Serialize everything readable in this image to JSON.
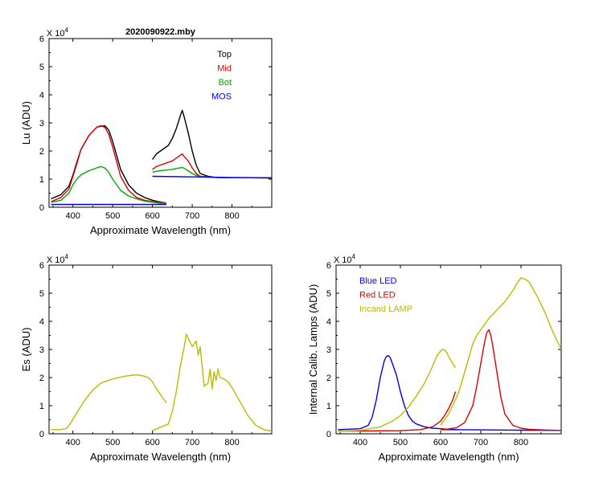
{
  "chart_data": [
    {
      "type": "line",
      "id": "lu",
      "title": "2020090922.mby",
      "xlabel": "Approximate Wavelength (nm)",
      "ylabel": "Lu (ADU)",
      "exponent_label": "X 10",
      "exponent_power": "4",
      "xlim": [
        340,
        900
      ],
      "ylim": [
        0,
        60000
      ],
      "xticks": [
        400,
        500,
        600,
        700,
        800
      ],
      "yticks": [
        0,
        10000,
        20000,
        30000,
        40000,
        50000,
        60000
      ],
      "ytick_labels": [
        "0",
        "1",
        "2",
        "3",
        "4",
        "5",
        "6"
      ],
      "legend_position": "top-right",
      "series": [
        {
          "name": "Top",
          "color": "#000000",
          "segments": [
            {
              "x": [
                345,
                370,
                390,
                400,
                410,
                420,
                440,
                460,
                470,
                480,
                490,
                500,
                520,
                540,
                560,
                580,
                600,
                615,
                635
              ],
              "y": [
                3000,
                4500,
                7500,
                11500,
                16000,
                20500,
                25500,
                28500,
                28800,
                29000,
                27500,
                23500,
                13500,
                8000,
                5000,
                3500,
                2500,
                2000,
                1500
              ]
            },
            {
              "x": [
                600,
                610,
                620,
                630,
                640,
                650,
                660,
                670,
                675,
                680,
                690,
                700,
                710,
                720,
                740,
                760,
                800,
                850,
                900
              ],
              "y": [
                17000,
                19000,
                20000,
                21000,
                22000,
                24500,
                28000,
                32500,
                34500,
                32000,
                26500,
                20000,
                15000,
                12000,
                11000,
                10600,
                10500,
                10500,
                10400
              ]
            }
          ]
        },
        {
          "name": "Mid",
          "color": "#dd0000",
          "segments": [
            {
              "x": [
                345,
                370,
                390,
                400,
                410,
                420,
                440,
                460,
                470,
                480,
                490,
                500,
                520,
                540,
                560,
                580,
                600,
                615,
                635
              ],
              "y": [
                2000,
                3500,
                6500,
                11000,
                15500,
                20500,
                25500,
                28500,
                29000,
                28500,
                26000,
                21500,
                11000,
                6000,
                3500,
                2500,
                2000,
                1800,
                1500
              ]
            },
            {
              "x": [
                600,
                610,
                620,
                630,
                640,
                650,
                660,
                670,
                675,
                680,
                690,
                700,
                710,
                720,
                740,
                760,
                800,
                850,
                900
              ],
              "y": [
                13500,
                14500,
                15000,
                15500,
                16000,
                16500,
                17500,
                18500,
                19000,
                18000,
                16500,
                14000,
                12000,
                11000,
                10800,
                10600,
                10500,
                10500,
                10400
              ]
            }
          ]
        },
        {
          "name": "Bot",
          "color": "#00aa00",
          "segments": [
            {
              "x": [
                345,
                370,
                390,
                400,
                410,
                420,
                440,
                460,
                470,
                480,
                490,
                500,
                520,
                540,
                560,
                580,
                600,
                615,
                635
              ],
              "y": [
                1800,
                2500,
                5000,
                8000,
                10000,
                11500,
                13000,
                14000,
                14500,
                14000,
                12500,
                10000,
                6000,
                4000,
                3000,
                2200,
                1800,
                1500,
                1300
              ]
            },
            {
              "x": [
                600,
                610,
                620,
                630,
                640,
                650,
                660,
                670,
                675,
                680,
                690,
                700,
                710,
                720,
                740,
                760,
                800,
                850,
                900
              ],
              "y": [
                12500,
                12800,
                13000,
                13200,
                13300,
                13500,
                13800,
                14000,
                14200,
                13800,
                13000,
                12000,
                11300,
                11000,
                10800,
                10600,
                10500,
                10500,
                10400
              ]
            }
          ]
        },
        {
          "name": "MOS",
          "color": "#0000ee",
          "segments": [
            {
              "x": [
                345,
                400,
                500,
                600,
                635
              ],
              "y": [
                1000,
                1000,
                1000,
                1000,
                1000
              ]
            },
            {
              "x": [
                600,
                700,
                800,
                900
              ],
              "y": [
                11000,
                10800,
                10600,
                10500
              ]
            }
          ]
        }
      ]
    },
    {
      "type": "line",
      "id": "es",
      "title": "",
      "xlabel": "Approximate Wavelength (nm)",
      "ylabel": "Es  (ADU)",
      "exponent_label": "X 10",
      "exponent_power": "4",
      "xlim": [
        340,
        900
      ],
      "ylim": [
        0,
        60000
      ],
      "xticks": [
        400,
        500,
        600,
        700,
        800
      ],
      "yticks": [
        0,
        10000,
        20000,
        30000,
        40000,
        50000,
        60000
      ],
      "ytick_labels": [
        "0",
        "1",
        "2",
        "3",
        "4",
        "5",
        "6"
      ],
      "legend_position": "none",
      "series": [
        {
          "name": "Es",
          "color": "#bbbb00",
          "segments": [
            {
              "x": [
                345,
                370,
                385,
                395,
                410,
                430,
                450,
                470,
                500,
                530,
                560,
                580,
                590,
                600,
                610,
                620,
                635
              ],
              "y": [
                1500,
                1500,
                2000,
                4000,
                7500,
                12000,
                15500,
                18000,
                19500,
                20500,
                21000,
                20500,
                20000,
                18500,
                16000,
                14000,
                11000
              ]
            },
            {
              "x": [
                600,
                640,
                650,
                660,
                670,
                680,
                685,
                690,
                700,
                710,
                715,
                720,
                725,
                730,
                740,
                745,
                750,
                755,
                760,
                765,
                770,
                780,
                790,
                800,
                820,
                840,
                860,
                880,
                900
              ],
              "y": [
                1200,
                3500,
                8000,
                15000,
                24000,
                31000,
                35500,
                34000,
                31000,
                33000,
                28000,
                31000,
                24000,
                17000,
                18000,
                23000,
                16000,
                22000,
                19000,
                23000,
                20000,
                19500,
                18500,
                16500,
                11500,
                6500,
                3000,
                1500,
                1000
              ]
            }
          ]
        }
      ]
    },
    {
      "type": "line",
      "id": "lamps",
      "title": "",
      "xlabel": "Approximate Wavelength (nm)",
      "ylabel": "Internal Calib. Lamps  (ADU)",
      "exponent_label": "X 10",
      "exponent_power": "4",
      "xlim": [
        340,
        900
      ],
      "ylim": [
        0,
        60000
      ],
      "xticks": [
        400,
        500,
        600,
        700,
        800
      ],
      "yticks": [
        0,
        10000,
        20000,
        30000,
        40000,
        50000,
        60000
      ],
      "ytick_labels": [
        "0",
        "1",
        "2",
        "3",
        "4",
        "5",
        "6"
      ],
      "legend_position": "top-left",
      "series": [
        {
          "name": "Blue LED",
          "color": "#0000ee",
          "segments": [
            {
              "x": [
                345,
                400,
                420,
                430,
                440,
                450,
                460,
                465,
                470,
                475,
                480,
                490,
                500,
                510,
                520,
                530,
                540,
                560,
                580,
                600,
                620,
                640
              ],
              "y": [
                1500,
                1800,
                3000,
                6000,
                12000,
                20000,
                26000,
                27500,
                27800,
                27000,
                25000,
                21000,
                15000,
                10000,
                6500,
                4500,
                3500,
                2500,
                2000,
                1800,
                1600,
                1500
              ]
            },
            {
              "x": [
                600,
                700,
                800,
                900
              ],
              "y": [
                1500,
                1400,
                1300,
                1200
              ]
            }
          ]
        },
        {
          "name": "Red LED",
          "color": "#dd0000",
          "segments": [
            {
              "x": [
                345,
                400,
                500,
                550,
                580,
                600,
                610,
                620,
                630,
                637
              ],
              "y": [
                1000,
                1000,
                1100,
                1500,
                2500,
                4500,
                6500,
                9000,
                12000,
                15000
              ]
            },
            {
              "x": [
                600,
                620,
                640,
                660,
                680,
                690,
                700,
                710,
                715,
                720,
                725,
                730,
                740,
                750,
                760,
                780,
                800,
                820,
                850,
                900
              ],
              "y": [
                1500,
                1700,
                2200,
                4000,
                10000,
                17000,
                25000,
                33000,
                36000,
                37000,
                35000,
                31000,
                22000,
                13000,
                7000,
                3000,
                2000,
                1600,
                1400,
                1200
              ]
            }
          ]
        },
        {
          "name": "Incand LAMP",
          "color": "#bbbb00",
          "segments": [
            {
              "x": [
                345,
                400,
                450,
                480,
                500,
                520,
                540,
                560,
                580,
                590,
                600,
                605,
                610,
                615,
                620,
                630,
                637
              ],
              "y": [
                1000,
                1200,
                2500,
                4500,
                6500,
                9500,
                13500,
                18000,
                24000,
                27500,
                29500,
                30000,
                29800,
                29000,
                27500,
                25000,
                23500
              ]
            },
            {
              "x": [
                600,
                620,
                640,
                650,
                660,
                670,
                680,
                690,
                700,
                720,
                740,
                760,
                780,
                790,
                800,
                810,
                820,
                840,
                860,
                880,
                900
              ],
              "y": [
                3000,
                7000,
                13000,
                17000,
                22000,
                27000,
                32000,
                35000,
                37000,
                41000,
                44000,
                47000,
                51000,
                53500,
                55500,
                55000,
                54000,
                49000,
                43000,
                36000,
                30000
              ]
            }
          ]
        }
      ]
    }
  ]
}
